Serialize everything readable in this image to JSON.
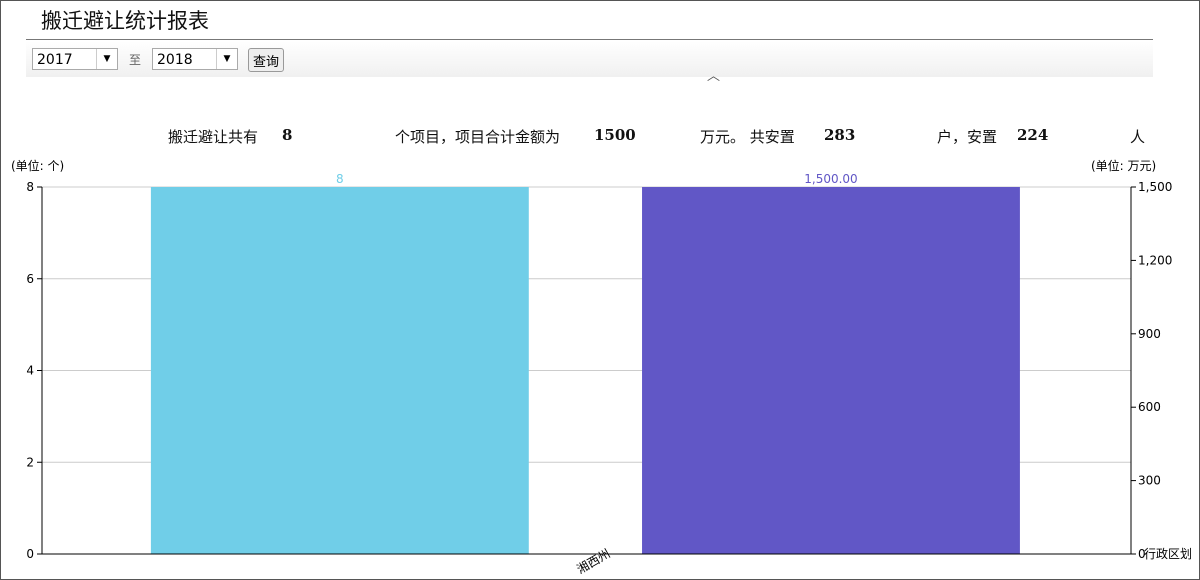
{
  "header": {
    "title": "搬迁避让统计报表"
  },
  "filters": {
    "start_year": "2017",
    "to_label": "至",
    "end_year": "2018",
    "query_label": "查询",
    "collapse_icon": "chevron-up-icon"
  },
  "summary": {
    "p1": "搬迁避让共有",
    "projects": "8",
    "p2": "个项目，项目合计金额为",
    "amount": "1500",
    "p3": "万元。 共安置",
    "households": "283",
    "p4": "户，安置",
    "people": "224",
    "p5": "人"
  },
  "chart_data": {
    "type": "bar",
    "categories": [
      "湘西州"
    ],
    "series": [
      {
        "values": [
          8
        ],
        "axis": "left",
        "color": "#70CEE8",
        "data_label": "8"
      },
      {
        "values": [
          1500
        ],
        "axis": "right",
        "color": "#6157C6",
        "data_label": "1,500.00"
      }
    ],
    "left_axis": {
      "label": "(单位: 个)",
      "ylim": [
        0,
        8
      ],
      "ticks": [
        "0",
        "2",
        "4",
        "6",
        "8"
      ]
    },
    "right_axis": {
      "label": "(单位: 万元)",
      "ylim": [
        0,
        1500
      ],
      "ticks": [
        "0",
        "300",
        "600",
        "900",
        "1,200",
        "1,500"
      ]
    },
    "xlabel": "行政区划",
    "grid": true
  }
}
